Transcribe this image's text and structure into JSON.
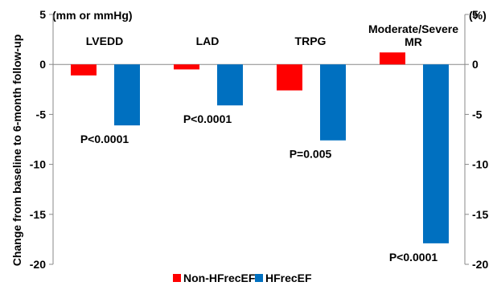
{
  "chart_data": {
    "type": "bar",
    "ylabel": "Change from baseline to 6-month follow-up",
    "left_unit": "(mm or mmHg)",
    "right_unit": "(%)",
    "categories": [
      "LVEDD",
      "LAD",
      "TRPG",
      "Moderate/Severe MR"
    ],
    "category_label_lines": [
      [
        "LVEDD"
      ],
      [
        "LAD"
      ],
      [
        "TRPG"
      ],
      [
        "Moderate/Severe",
        "MR"
      ]
    ],
    "series": [
      {
        "name": "Non-HFrecEF",
        "color": "#ff0000",
        "values": [
          -1.1,
          -0.5,
          -2.6,
          1.2
        ]
      },
      {
        "name": "HFrecEF",
        "color": "#0070c0",
        "values": [
          -6.1,
          -4.1,
          -7.6,
          -17.9
        ]
      }
    ],
    "p_values": [
      "P<0.0001",
      "P<0.0001",
      "P=0.005",
      "P<0.0001"
    ],
    "ylim": [
      -20,
      5
    ],
    "yticks": [
      5,
      0,
      -5,
      -10,
      -15,
      -20
    ],
    "legend_position": "bottom-center",
    "grid": false
  }
}
